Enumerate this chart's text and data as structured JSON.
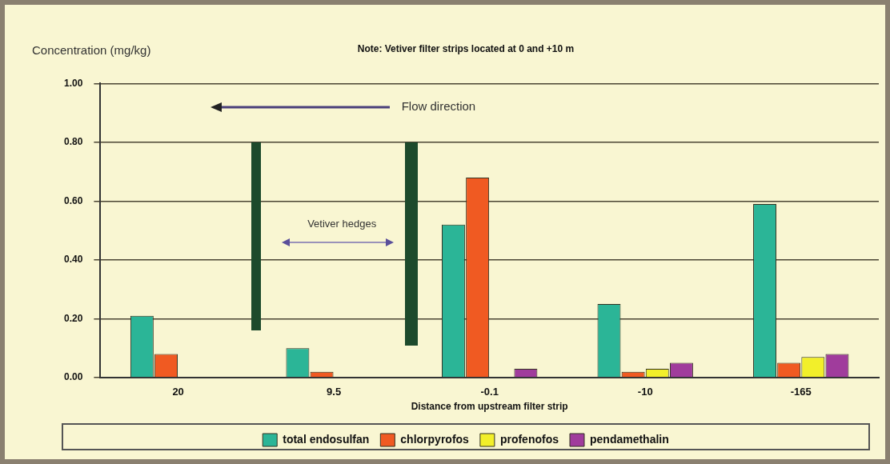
{
  "chart_data": {
    "type": "bar",
    "title": "Note: Vetiver filter strips located at 0 and +10 m",
    "ylabel": "Concentration (mg/kg)",
    "xlabel": "Distance from upstream filter strip",
    "categories": [
      "20",
      "9.5",
      "-0.1",
      "-10",
      "-165"
    ],
    "series": [
      {
        "name": "total endosulfan",
        "color": "#2bb597",
        "values": [
          0.21,
          0.1,
          0.52,
          0.25,
          0.59
        ]
      },
      {
        "name": "chlorpyrofos",
        "color": "#f05a22",
        "values": [
          0.08,
          0.02,
          0.68,
          0.02,
          0.05
        ]
      },
      {
        "name": "profenofos",
        "color": "#f2ef2a",
        "values": [
          0,
          0,
          0,
          0.03,
          0.07
        ]
      },
      {
        "name": "pendamethalin",
        "color": "#a03c9c",
        "values": [
          0,
          0,
          0.03,
          0.05,
          0.08
        ]
      }
    ],
    "ylim": [
      0,
      1
    ],
    "yticks": [
      {
        "value": 0,
        "label": "0.00"
      },
      {
        "value": 0.2,
        "label": "0.20"
      },
      {
        "value": 0.4,
        "label": "0.40"
      },
      {
        "value": 0.6,
        "label": "0.60"
      },
      {
        "value": 0.8,
        "label": "0.80"
      },
      {
        "value": 1,
        "label": "1.00"
      }
    ],
    "grid": "y",
    "legend": "bottom",
    "annotations": [
      "Flow direction",
      "Vetiver hedges"
    ]
  }
}
